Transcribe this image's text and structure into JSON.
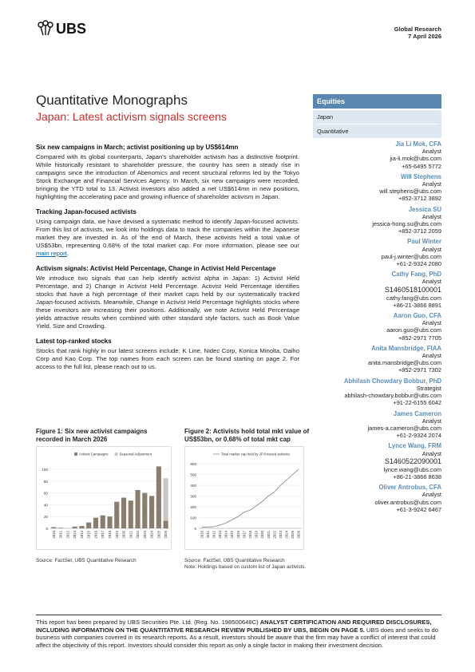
{
  "header": {
    "logo": "UBS",
    "section": "Global Research",
    "date": "7 April 2026"
  },
  "title": "Quantitative Monographs",
  "subtitle": "Japan: Latest activism signals screens",
  "sidebar": {
    "label": "Equities",
    "tags": [
      "Japan",
      "Quantitative"
    ]
  },
  "sections": [
    {
      "heading": "Six new campaigns in March; activist positioning up by US$614mn",
      "body": "Compared with its global counterparts, Japan's shareholder activism has a distinctive footprint. While historically resistant to shareholder pressure, the country has seen a steady rise in campaigns since the introduction of Abenomics and recent structural reforms led by the Tokyo Stock Exchange and Financial Services Agency. In March, six new campaigns were recorded, bringing the YTD total to 13. Activist investors also added a net US$614mn in new positions, highlighting the accelerating pace and growing influence of shareholder activism in Japan."
    },
    {
      "heading": "Tracking Japan-focused activists",
      "body": "Using campaign data, we have devised a systematic method to identify Japan-focused activists. From this list of activists, we look into holdings data to track the companies within the Japanese market they are invested in. As of the end of March, these activists held a total value of US$53bn, representing 0.68% of the total market cap. For more information, please see our ",
      "link": "main report",
      "body_end": "."
    },
    {
      "heading": "Activism signals: Activist Held Percentage, Change in Activist Held Percentage",
      "body": "We introduce two signals that can help identify activist alpha in Japan: 1) Activist Held Percentage, and 2) Change in Activist Held Percentage. Activist Held Percentage identifies stocks that have a high percentage of their market caps held by our systematically tracked Japan-focused activists. Meanwhile, Change in Activist Held Percentage highlights stocks where these investors are increasing their positions. Additionally, we note Activist Held Percentage yields attractive results when combined with other standard style factors, such as Book Value Yield, Size and Crowding."
    },
    {
      "heading": "Latest top-ranked stocks",
      "body": "Stocks that rank highly in our latest screens include: K Line, Nidec Corp, Konica Minolta, Daiho Corp and Kao Corp. The top names from each screen can be found starting on page 2. For access to the full list, please reach out to us."
    }
  ],
  "analysts": [
    {
      "name": "Jia Li Mok, CFA",
      "role": "Analyst",
      "email": "jia-li.mok@ubs.com",
      "phone": "+65-6495 5772"
    },
    {
      "name": "Will Stephens",
      "role": "Analyst",
      "email": "will.stephens@ubs.com",
      "phone": "+852-3712 3892"
    },
    {
      "name": "Jessica SU",
      "role": "Analyst",
      "email": "jessica-hong.su@ubs.com",
      "phone": "+852-3712 2059"
    },
    {
      "name": "Paul Winter",
      "role": "Analyst",
      "email": "paul-j.winter@ubs.com",
      "phone": "+61-2-9324 2080"
    },
    {
      "name": "Cathy Fang, PhD",
      "role": "Analyst",
      "id": "S1460518100001",
      "email": "cathy.fang@ubs.com",
      "phone": "+86-21-3866 8891"
    },
    {
      "name": "Aaron Guo, CFA",
      "role": "Analyst",
      "email": "aaron.guo@ubs.com",
      "phone": "+852-2971 7705"
    },
    {
      "name": "Anita Mansbridge, FIAA",
      "role": "Analyst",
      "email": "anita.mansbridge@ubs.com",
      "phone": "+852-2971 7302"
    },
    {
      "name": "Abhilash Chowdary Bobbur, PhD",
      "role": "Strategist",
      "email": "abhilash-chowdary.bobbur@ubs.com",
      "phone": "+91-22-6155 6042"
    },
    {
      "name": "James Cameron",
      "role": "Analyst",
      "email": "james-a.cameron@ubs.com",
      "phone": "+61-2-9324 2074"
    },
    {
      "name": "Lynce Wang, FRM",
      "role": "Analyst",
      "id": "S1460522090001",
      "email": "lynce.wang@ubs.com",
      "phone": "+86-21-3866 8638"
    },
    {
      "name": "Oliver Antrobus, CFA",
      "role": "Analyst",
      "email": "oliver.antrobus@ubs.com",
      "phone": "+61-3-9242 6467"
    }
  ],
  "chart_data": [
    {
      "type": "bar",
      "title": "Figure 1: Six new activist campaigns recorded in March 2026",
      "source": "Source: FactSet, UBS Quantitative Research",
      "categories": [
        "2010",
        "2011",
        "2012",
        "2013",
        "2014",
        "2015",
        "2016",
        "2017",
        "2018",
        "2019",
        "2020",
        "2021",
        "2022",
        "2023",
        "2024",
        "2025",
        "2026"
      ],
      "series": [
        {
          "name": "Activist Campaigns",
          "color": "#8b7d6e",
          "values": [
            2,
            1,
            0,
            3,
            4,
            10,
            18,
            22,
            20,
            45,
            52,
            47,
            65,
            60,
            55,
            105,
            13
          ]
        },
        {
          "name": "Seasonal Adjustment",
          "color": "#cbc5bf",
          "values": [
            null,
            null,
            null,
            null,
            null,
            null,
            null,
            null,
            null,
            null,
            null,
            null,
            null,
            null,
            null,
            null,
            72
          ]
        }
      ],
      "ylim": [
        0,
        115
      ],
      "yticks": [
        0,
        20,
        40,
        60,
        80,
        100
      ],
      "grid": true,
      "stacked": true,
      "legend": "top"
    },
    {
      "type": "line",
      "title": "Figure 2: Activists hold total mkt value of US$53bn, or 0.68% of total mkt cap",
      "source": "Source: FactSet, UBS Quantitative Research",
      "note": "Note: Holdings based on custom list of Japan activists.",
      "categories": [
        "2010",
        "2011",
        "2012",
        "2013",
        "2014",
        "2015",
        "2016",
        "2017",
        "2018",
        "2019",
        "2020",
        "2021",
        "2022",
        "2023",
        "2024",
        "2025",
        "2026"
      ],
      "series": [
        {
          "name": "Total market cap held by JP-focused activists",
          "color": "#8c8c8c",
          "values": [
            10,
            12,
            15,
            30,
            50,
            80,
            110,
            150,
            170,
            210,
            250,
            300,
            340,
            400,
            450,
            500,
            550
          ]
        }
      ],
      "ylim": [
        0,
        630
      ],
      "yticks": [
        0,
        100,
        200,
        300,
        400,
        500,
        600
      ],
      "grid": true,
      "legend": "top"
    }
  ],
  "footer": {
    "text_start": "This report has been prepared by UBS Securities Pte. Ltd. (Reg. No. 198500648C) ",
    "bold": "ANALYST CERTIFICATION AND REQUIRED DISCLOSURES, INCLUDING INFORMATION ON THE QUANTITATIVE RESEARCH REVIEW PUBLISHED BY UBS, BEGIN ON PAGE 5.",
    "text_end": " UBS does and seeks to do business with companies covered in its research reports. As a result, investors should be aware that the firm may have a conflict of interest that could affect the objectivity of this report. Investors should consider this report as only a single factor in making their investment decision."
  }
}
